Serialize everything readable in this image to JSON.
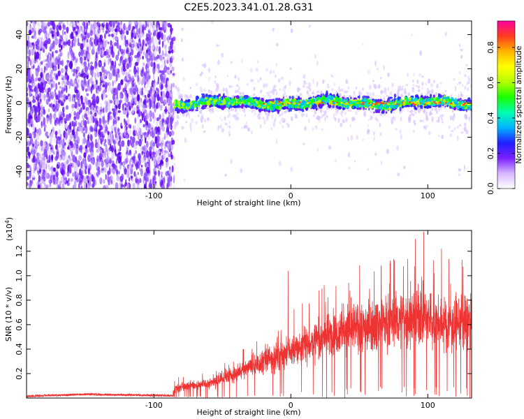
{
  "chart_data": [
    {
      "type": "heatmap",
      "title": "C2E5.2023.341.01.28.G31",
      "xlabel": "Height of straight line (km)",
      "ylabel": "Frequency (Hz)",
      "xlim": [
        -193,
        132
      ],
      "ylim": [
        -50,
        48
      ],
      "xticks": [
        -100,
        0,
        100
      ],
      "xtick_labels": [
        "-100",
        "0",
        "100"
      ],
      "yticks": [
        -40,
        -20,
        0,
        20,
        40
      ],
      "ytick_labels": [
        "-40",
        "-20",
        "0",
        "20",
        "40"
      ],
      "noise_region_end_km": -85,
      "signal_center_hz": 0,
      "colorbar": {
        "label": "Normalized spectral amplitude",
        "range": [
          0,
          0.95
        ],
        "ticks": [
          0.0,
          0.2,
          0.4,
          0.6,
          0.8
        ],
        "tick_labels": [
          "0.0",
          "0.2",
          "0.4",
          "0.6",
          "0.8"
        ],
        "colors": [
          "#ffffff",
          "#d6b8ff",
          "#7a1fff",
          "#1f1fff",
          "#00b4ff",
          "#00ffb0",
          "#19ff00",
          "#b4ff00",
          "#ffff00",
          "#ffb400",
          "#ff3c1e",
          "#ff00a0"
        ]
      }
    },
    {
      "type": "line",
      "xlabel": "Height of straight line (km)",
      "ylabel": "SNR (10 * v/v)",
      "yscale_label_base": "(x10",
      "yscale_label_exp": "4",
      "yscale_label_end": ")",
      "color": "#ee3333",
      "xlim": [
        -193,
        132
      ],
      "ylim": [
        0,
        1.37
      ],
      "xticks": [
        -100,
        0,
        100
      ],
      "xtick_labels": [
        "-100",
        "0",
        "100"
      ],
      "yticks": [
        0.2,
        0.4,
        0.6,
        0.8,
        1.0,
        1.2
      ],
      "ytick_labels": [
        "0.2",
        "0.4",
        "0.6",
        "0.8",
        "1.0",
        "1.2"
      ],
      "trend": {
        "x": [
          -193,
          -150,
          -86,
          -84,
          -60,
          -40,
          -20,
          0,
          20,
          40,
          60,
          80,
          95,
          110,
          132
        ],
        "y": [
          0.015,
          0.03,
          0.02,
          0.08,
          0.12,
          0.2,
          0.3,
          0.38,
          0.48,
          0.56,
          0.6,
          0.64,
          0.66,
          0.6,
          0.62
        ]
      },
      "peaks": [
        {
          "x": 97,
          "y": 1.36
        },
        {
          "x": 91,
          "y": 1.3
        },
        {
          "x": -2,
          "y": 1.04
        },
        {
          "x": 110,
          "y": 1.22
        },
        {
          "x": 125,
          "y": 1.13
        },
        {
          "x": 66,
          "y": 1.08
        }
      ]
    }
  ]
}
